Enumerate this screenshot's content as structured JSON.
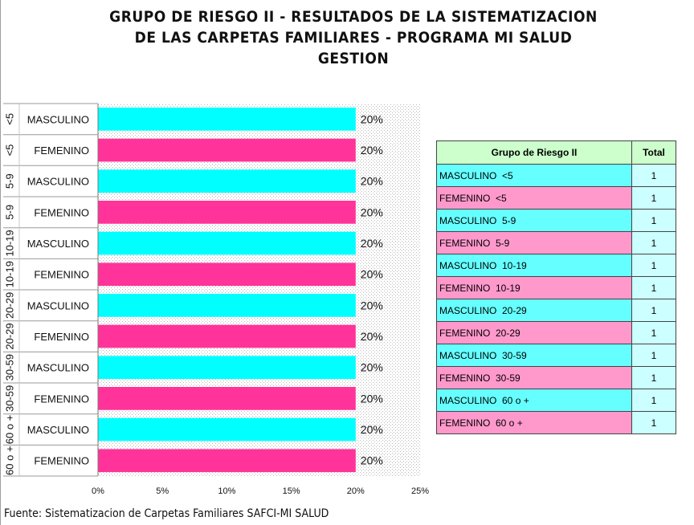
{
  "title_lines": [
    "GRUPO DE RIESGO II - RESULTADOS DE LA SISTEMATIZACION",
    "DE LAS CARPETAS FAMILIARES - PROGRAMA MI SALUD",
    "GESTION"
  ],
  "source": "Fuente: Sistematizacion de Carpetas Familiares SAFCI-MI SALUD",
  "colors": {
    "male": "#00ffff",
    "female": "#ff3399"
  },
  "chart_data": {
    "type": "bar",
    "orientation": "horizontal",
    "age_groups": [
      "<5",
      "5-9",
      "10-19",
      "20-29",
      "30-59",
      "60 o +"
    ],
    "categories": [
      {
        "age": "<5",
        "sex": "MASCULINO"
      },
      {
        "age": "<5",
        "sex": "FEMENINO"
      },
      {
        "age": "5-9",
        "sex": "MASCULINO"
      },
      {
        "age": "5-9",
        "sex": "FEMENINO"
      },
      {
        "age": "10-19",
        "sex": "MASCULINO"
      },
      {
        "age": "10-19",
        "sex": "FEMENINO"
      },
      {
        "age": "20-29",
        "sex": "MASCULINO"
      },
      {
        "age": "20-29",
        "sex": "FEMENINO"
      },
      {
        "age": "30-59",
        "sex": "MASCULINO"
      },
      {
        "age": "30-59",
        "sex": "FEMENINO"
      },
      {
        "age": "60 o +",
        "sex": "MASCULINO"
      },
      {
        "age": "60 o +",
        "sex": "FEMENINO"
      }
    ],
    "values": [
      20,
      20,
      20,
      20,
      20,
      20,
      20,
      20,
      20,
      20,
      20,
      20
    ],
    "value_labels": [
      "20%",
      "20%",
      "20%",
      "20%",
      "20%",
      "20%",
      "20%",
      "20%",
      "20%",
      "20%",
      "20%",
      "20%"
    ],
    "xlim": [
      0,
      25
    ],
    "xticks": [
      "0%",
      "5%",
      "10%",
      "15%",
      "20%",
      "25%"
    ],
    "grid": false,
    "plot_background": "dotted"
  },
  "table": {
    "headers": [
      "Grupo de Riesgo II",
      "Total"
    ],
    "rows": [
      {
        "group": "MASCULINO  <5",
        "total": "1",
        "color": "cyan"
      },
      {
        "group": "FEMENINO  <5",
        "total": "1",
        "color": "pink"
      },
      {
        "group": "MASCULINO  5-9",
        "total": "1",
        "color": "cyan"
      },
      {
        "group": "FEMENINO  5-9",
        "total": "1",
        "color": "pink"
      },
      {
        "group": "MASCULINO  10-19",
        "total": "1",
        "color": "cyan"
      },
      {
        "group": "FEMENINO  10-19",
        "total": "1",
        "color": "pink"
      },
      {
        "group": "MASCULINO  20-29",
        "total": "1",
        "color": "cyan"
      },
      {
        "group": "FEMENINO  20-29",
        "total": "1",
        "color": "pink"
      },
      {
        "group": "MASCULINO  30-59",
        "total": "1",
        "color": "cyan"
      },
      {
        "group": "FEMENINO  30-59",
        "total": "1",
        "color": "pink"
      },
      {
        "group": "MASCULINO  60 o +",
        "total": "1",
        "color": "cyan"
      },
      {
        "group": "FEMENINO  60 o +",
        "total": "1",
        "color": "pink"
      }
    ]
  }
}
